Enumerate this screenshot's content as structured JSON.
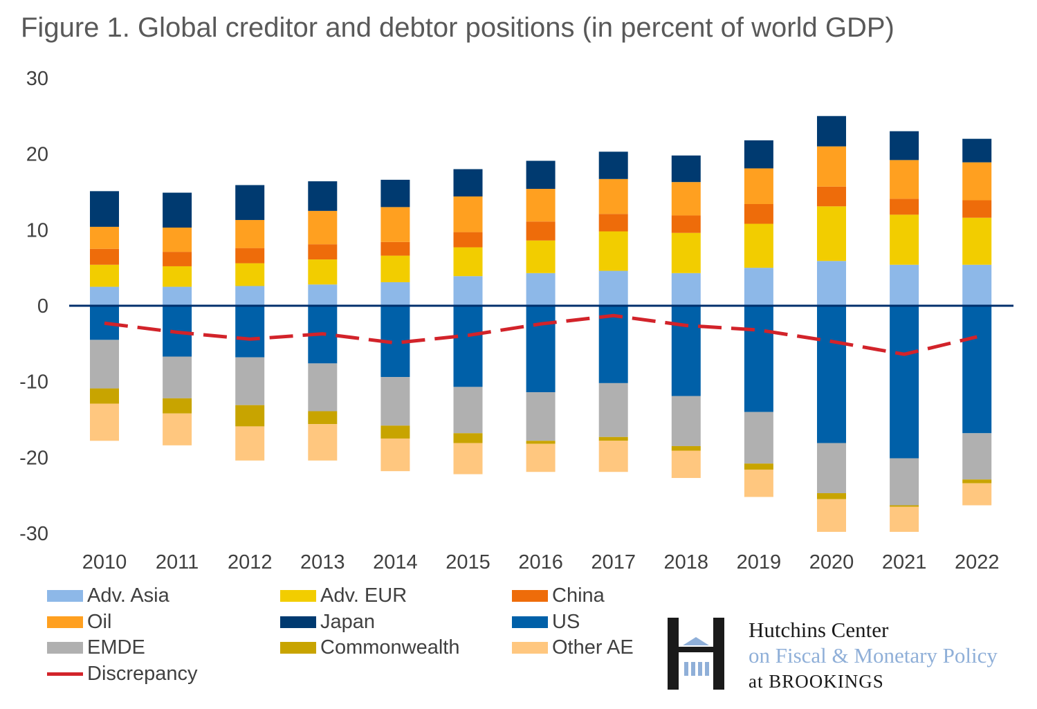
{
  "chart_data": {
    "type": "bar",
    "stacked": true,
    "title": "Figure 1. Global creditor and debtor positions (in percent of world GDP)",
    "xlabel": "",
    "ylabel": "",
    "ylim": [
      -30,
      30
    ],
    "yticks": [
      30,
      20,
      10,
      0,
      -10,
      -20,
      -30
    ],
    "grid": false,
    "legend_placement": "bottom",
    "categories": [
      "2010",
      "2011",
      "2012",
      "2013",
      "2014",
      "2015",
      "2016",
      "2017",
      "2018",
      "2019",
      "2020",
      "2021",
      "2022"
    ],
    "series": [
      {
        "name": "Adv. Asia",
        "color": "#8DB8E8",
        "values": [
          2.5,
          2.5,
          2.6,
          2.8,
          3.1,
          3.9,
          4.3,
          4.6,
          4.3,
          5.0,
          5.9,
          5.4,
          5.4
        ]
      },
      {
        "name": "Adv. EUR",
        "color": "#F2CD00",
        "values": [
          2.9,
          2.7,
          3.0,
          3.3,
          3.5,
          3.8,
          4.3,
          5.2,
          5.3,
          5.8,
          7.2,
          6.6,
          6.2
        ]
      },
      {
        "name": "China",
        "color": "#EE6C0A",
        "values": [
          2.1,
          1.9,
          2.0,
          2.0,
          1.8,
          2.0,
          2.5,
          2.3,
          2.3,
          2.6,
          2.6,
          2.1,
          2.3
        ]
      },
      {
        "name": "Oil",
        "color": "#FFA020",
        "values": [
          2.9,
          3.2,
          3.7,
          4.4,
          4.6,
          4.7,
          4.3,
          4.6,
          4.4,
          4.7,
          5.3,
          5.1,
          5.0
        ]
      },
      {
        "name": "Japan",
        "color": "#003A70",
        "values": [
          4.7,
          4.6,
          4.6,
          3.9,
          3.6,
          3.6,
          3.7,
          3.6,
          3.5,
          3.7,
          4.0,
          3.8,
          3.1
        ]
      },
      {
        "name": "US",
        "color": "#0060A8",
        "values": [
          -4.5,
          -6.7,
          -6.8,
          -7.6,
          -9.4,
          -10.7,
          -11.4,
          -10.2,
          -11.9,
          -14.0,
          -18.1,
          -20.1,
          -16.8
        ]
      },
      {
        "name": "EMDE",
        "color": "#B0B0B0",
        "values": [
          -6.4,
          -5.5,
          -6.3,
          -6.3,
          -6.4,
          -6.1,
          -6.4,
          -7.1,
          -6.6,
          -6.8,
          -6.6,
          -6.2,
          -6.1
        ]
      },
      {
        "name": "Commonwealth",
        "color": "#C8A400",
        "values": [
          -2.0,
          -2.0,
          -2.8,
          -1.7,
          -1.7,
          -1.3,
          -0.4,
          -0.5,
          -0.6,
          -0.8,
          -0.8,
          -0.2,
          -0.5
        ]
      },
      {
        "name": "Other AE",
        "color": "#FFC77F",
        "values": [
          -4.9,
          -4.2,
          -4.5,
          -4.8,
          -4.3,
          -4.1,
          -3.7,
          -4.1,
          -3.6,
          -3.6,
          -4.3,
          -3.3,
          -2.9
        ]
      }
    ],
    "line_series": {
      "name": "Discrepancy",
      "color": "#D2232A",
      "style": "dashed",
      "values": [
        -2.3,
        -3.5,
        -4.4,
        -3.7,
        -4.9,
        -3.9,
        -2.4,
        -1.3,
        -2.6,
        -3.2,
        -4.7,
        -6.4,
        -4.1
      ]
    },
    "legend_order": [
      "Adv. Asia",
      "Adv. EUR",
      "China",
      "Oil",
      "Japan",
      "US",
      "EMDE",
      "Commonwealth",
      "Other AE",
      "Discrepancy"
    ]
  },
  "logo": {
    "line1": "Hutchins Center",
    "line2": "on Fiscal & Monetary Policy",
    "line3": "at BROOKINGS",
    "color_dark": "#1a1a1a",
    "color_accent": "#8FAFD8"
  }
}
